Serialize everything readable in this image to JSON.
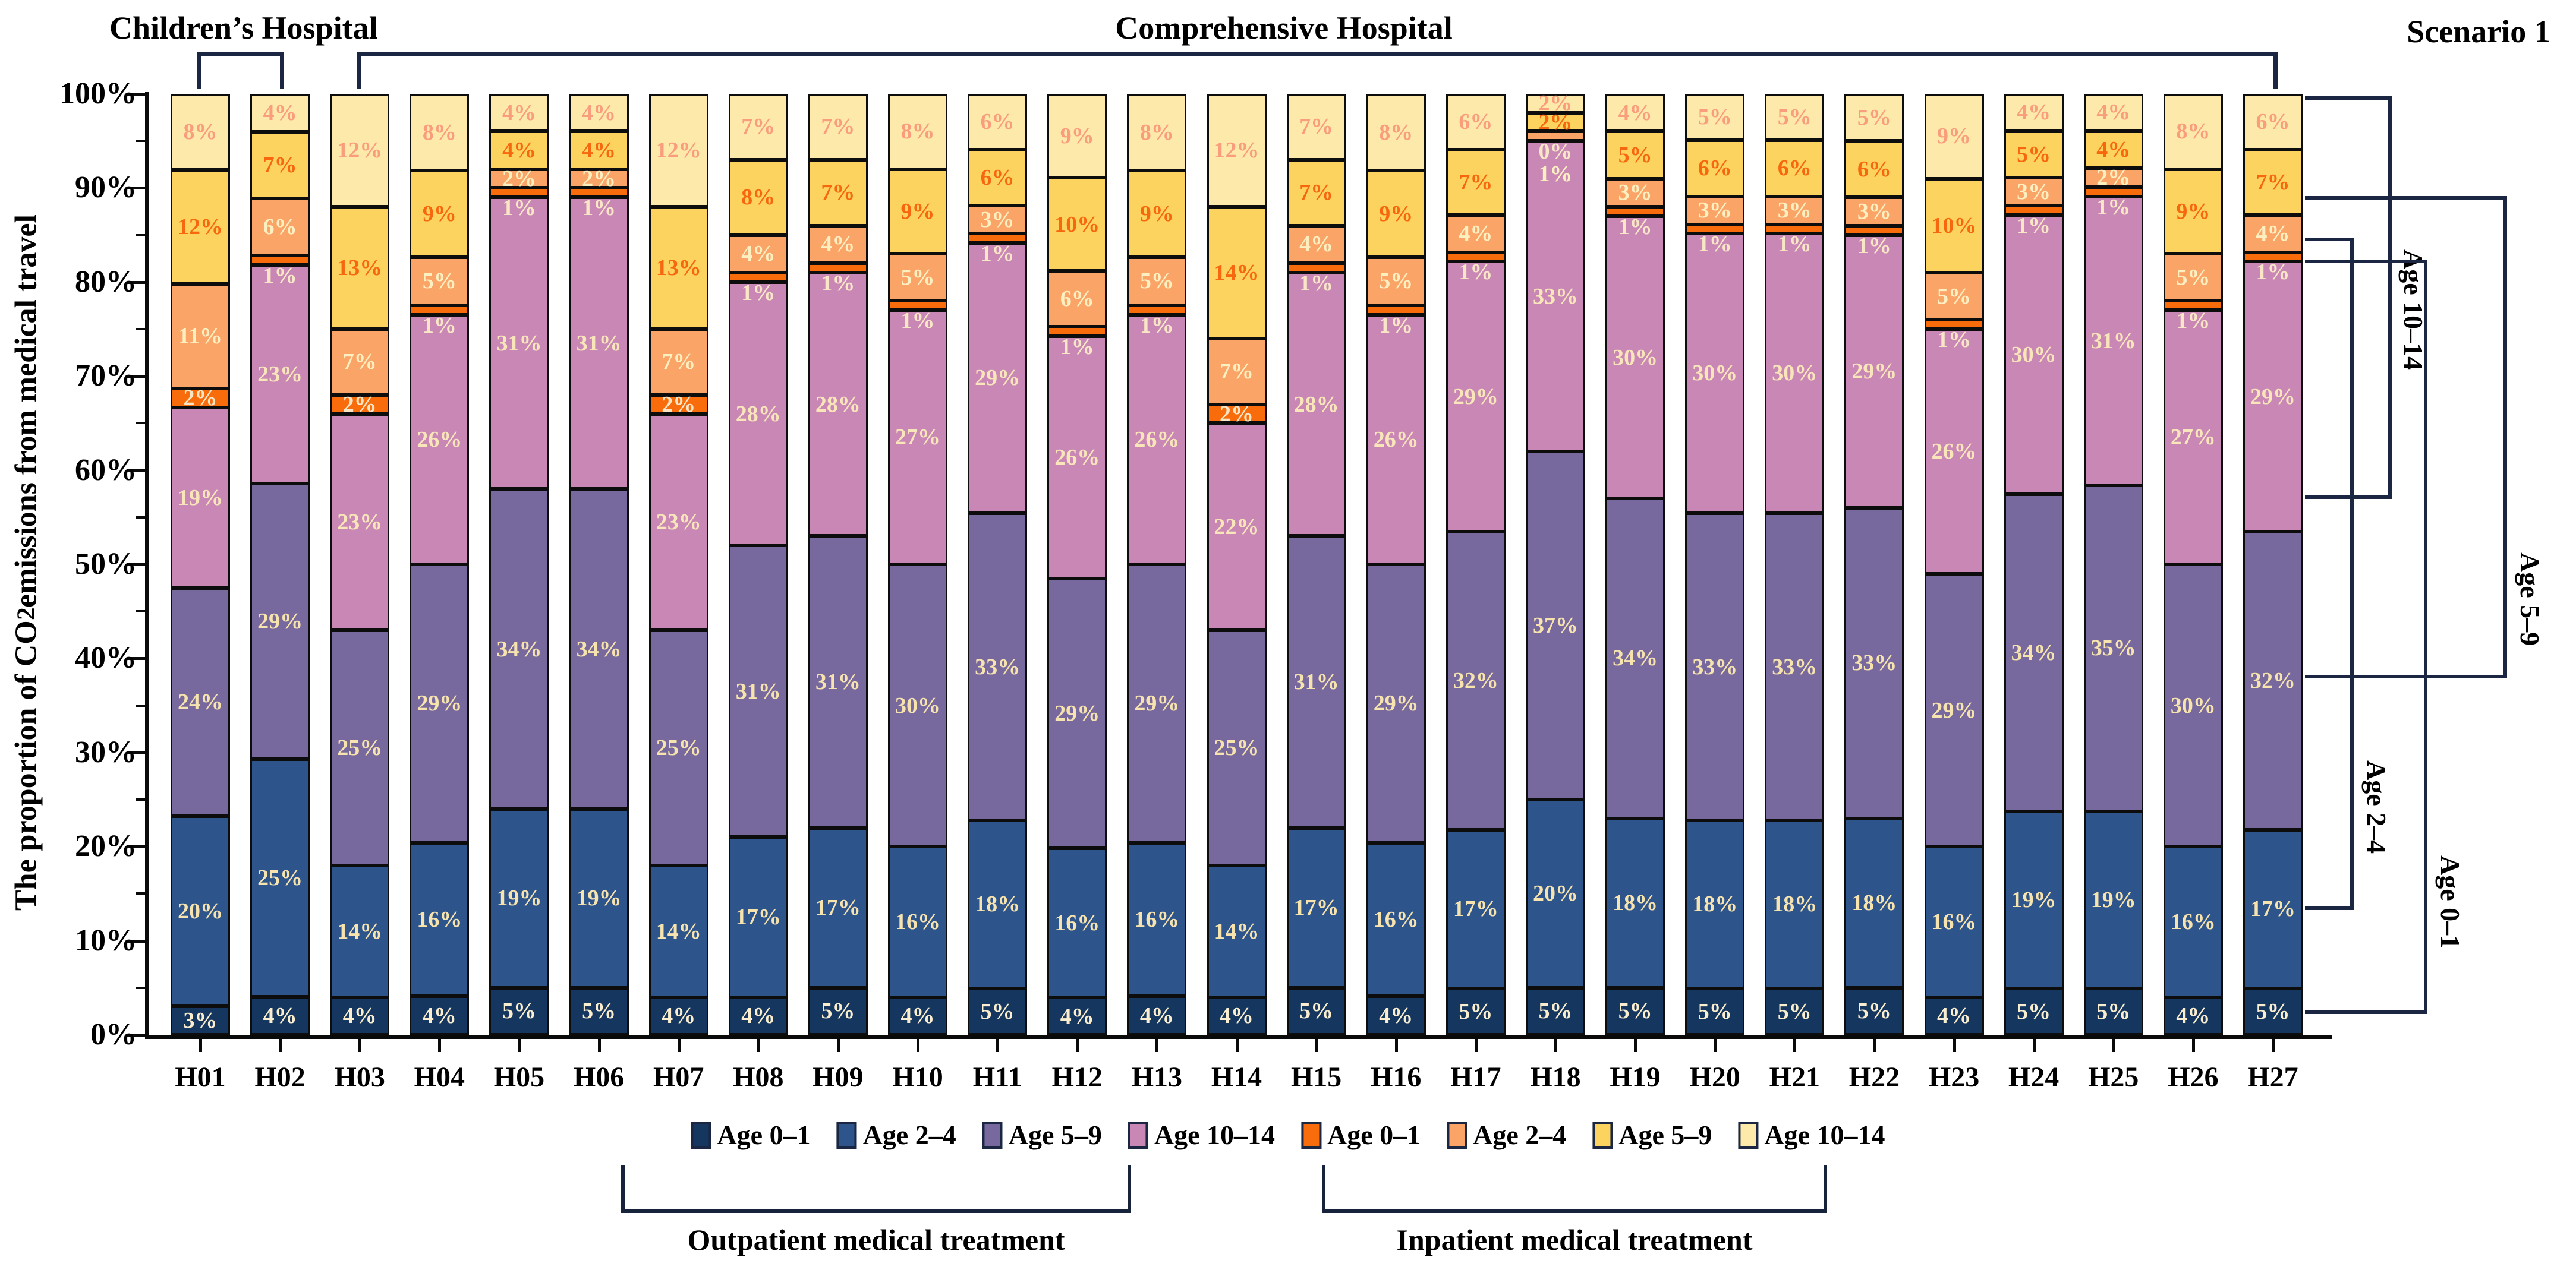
{
  "header": {
    "children_label": "Children’s Hospital",
    "comprehensive_label": "Comprehensive Hospital",
    "scenario_label": "Scenario 1"
  },
  "y_axis": {
    "title_pre": "The proportion of CO",
    "title_sub": "2",
    "title_post": " emissions from medical travel",
    "tick_labels": [
      "0%",
      "10%",
      "20%",
      "30%",
      "40%",
      "50%",
      "60%",
      "70%",
      "80%",
      "90%",
      "100%"
    ]
  },
  "legend": {
    "items": [
      {
        "label": "Age 0–1",
        "color": "#14365F"
      },
      {
        "label": "Age 2–4",
        "color": "#2E548C"
      },
      {
        "label": "Age 5–9",
        "color": "#77699D"
      },
      {
        "label": "Age 10–14",
        "color": "#C987B5"
      },
      {
        "label": "Age 0–1",
        "color": "#F96C0B"
      },
      {
        "label": "Age 2–4",
        "color": "#FBA468"
      },
      {
        "label": "Age 5–9",
        "color": "#FCD35F"
      },
      {
        "label": "Age 10–14",
        "color": "#FDE9A9"
      }
    ]
  },
  "treatment_brackets": {
    "outpatient": "Outpatient medical treatment",
    "inpatient": "Inpatient medical treatment"
  },
  "age_brackets": [
    {
      "label": "Age 10–14"
    },
    {
      "label": "Age 5–9"
    },
    {
      "label": "Age 2–4"
    },
    {
      "label": "Age 0–1"
    }
  ],
  "chart_data": {
    "type": "bar",
    "stacked": true,
    "unit": "%",
    "ylim": [
      0,
      100
    ],
    "ytick_step": 10,
    "grid": false,
    "legend_position": "bottom",
    "categories": [
      "H01",
      "H02",
      "H03",
      "H04",
      "H05",
      "H06",
      "H07",
      "H08",
      "H09",
      "H10",
      "H11",
      "H12",
      "H13",
      "H14",
      "H15",
      "H16",
      "H17",
      "H18",
      "H19",
      "H20",
      "H21",
      "H22",
      "H23",
      "H24",
      "H25",
      "H26",
      "H27"
    ],
    "series": [
      {
        "name": "Outpatient Age 0–1",
        "color": "#14365F",
        "label_color": "#FBEECF",
        "values": [
          3,
          4,
          4,
          4,
          5,
          5,
          4,
          4,
          5,
          4,
          5,
          4,
          4,
          4,
          5,
          4,
          5,
          5,
          5,
          5,
          5,
          5,
          4,
          5,
          5,
          4,
          5
        ]
      },
      {
        "name": "Outpatient Age 2–4",
        "color": "#2E548C",
        "label_color": "#F6E3AE",
        "values": [
          20,
          25,
          14,
          16,
          19,
          19,
          14,
          17,
          17,
          16,
          18,
          16,
          16,
          14,
          17,
          16,
          17,
          20,
          18,
          18,
          18,
          18,
          16,
          19,
          19,
          16,
          17
        ]
      },
      {
        "name": "Outpatient Age 5–9",
        "color": "#77699D",
        "label_color": "#F6E3AE",
        "values": [
          24,
          29,
          25,
          29,
          34,
          34,
          25,
          31,
          31,
          30,
          33,
          29,
          29,
          25,
          31,
          29,
          32,
          37,
          34,
          33,
          33,
          33,
          29,
          34,
          35,
          30,
          32
        ]
      },
      {
        "name": "Outpatient Age 10–14",
        "color": "#C987B5",
        "label_color": "#F8E6BA",
        "values": [
          19,
          23,
          23,
          26,
          31,
          31,
          23,
          28,
          28,
          27,
          29,
          26,
          26,
          22,
          28,
          26,
          29,
          33,
          30,
          30,
          30,
          29,
          26,
          30,
          31,
          27,
          29
        ]
      },
      {
        "name": "Inpatient Age 0–1",
        "color": "#F96C0B",
        "label_color": "#F8E6C6",
        "values": [
          2,
          1,
          2,
          1,
          1,
          1,
          2,
          1,
          1,
          1,
          1,
          1,
          1,
          2,
          1,
          1,
          1,
          0,
          1,
          1,
          1,
          1,
          1,
          1,
          1,
          1,
          1
        ]
      },
      {
        "name": "Inpatient Age 2–4",
        "color": "#FBA468",
        "label_color": "#FCEFC0",
        "values": [
          11,
          6,
          7,
          5,
          2,
          2,
          7,
          4,
          4,
          5,
          3,
          6,
          5,
          7,
          4,
          5,
          4,
          1,
          3,
          3,
          3,
          3,
          5,
          3,
          2,
          5,
          4
        ]
      },
      {
        "name": "Inpatient Age 5–9",
        "color": "#FCD35F",
        "label_color": "#F7680E",
        "values": [
          12,
          7,
          13,
          9,
          4,
          4,
          13,
          8,
          7,
          9,
          6,
          10,
          9,
          14,
          7,
          9,
          7,
          2,
          5,
          6,
          6,
          6,
          10,
          5,
          4,
          9,
          7
        ]
      },
      {
        "name": "Inpatient Age 10–14",
        "color": "#FDE9A9",
        "label_color": "#F99D7D",
        "values": [
          8,
          4,
          12,
          8,
          4,
          4,
          12,
          7,
          7,
          8,
          6,
          9,
          8,
          12,
          7,
          8,
          6,
          2,
          4,
          5,
          5,
          5,
          9,
          4,
          4,
          8,
          6
        ]
      }
    ]
  }
}
